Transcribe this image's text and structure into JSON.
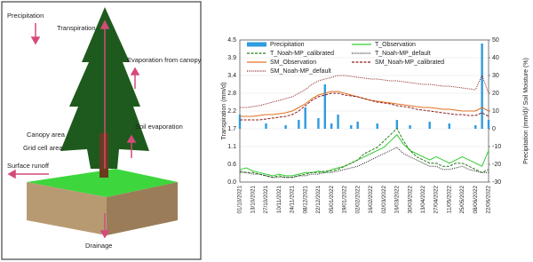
{
  "diagram": {
    "labels": {
      "precipitation": "Precipitation",
      "transpiration": "Transpiration",
      "evaporation_canopy": "Evaporation from canopy",
      "soil_evaporation": "Soil evaporation",
      "canopy_area": "Canopy area",
      "grid_cell_area": "Grid cell area",
      "surface_runoff": "Surface runoff",
      "drainage": "Drainage"
    }
  },
  "chart_data": {
    "type": "line",
    "y_label": "Transpiration (mm/d)",
    "y2_label": "Precipitation (mm/d)/ Soil Moisture (%)",
    "categories": [
      "01/10/2021",
      null,
      "13/10/2021",
      null,
      "27/10/2021",
      null,
      "10/11/2021",
      null,
      "24/11/2021",
      null,
      "08/12/2021",
      null,
      "22/12/2021",
      null,
      "05/01/2022",
      null,
      "19/01/2022",
      null,
      "02/02/2022",
      null,
      "16/02/2022",
      null,
      "02/03/2022",
      null,
      "16/03/2022",
      null,
      "30/03/2022",
      null,
      "13/04/2022",
      null,
      "27/04/2022",
      null,
      "11/05/2022",
      null,
      "25/05/2022",
      null,
      "08/06/2022",
      null,
      "22/06/2022"
    ],
    "ylim": [
      0,
      4.5
    ],
    "yticks": [
      {
        "value": 0,
        "label": "0.0"
      },
      {
        "value": 0.5625,
        "label": "0.6"
      },
      {
        "value": 1.125,
        "label": "1.1"
      },
      {
        "value": 1.6875,
        "label": "1.7"
      },
      {
        "value": 2.25,
        "label": "2.2"
      },
      {
        "value": 2.8125,
        "label": "2.8"
      },
      {
        "value": 3.375,
        "label": "3.4"
      },
      {
        "value": 3.9375,
        "label": "3.9"
      },
      4.5
    ],
    "y2lim": [
      -30,
      50
    ],
    "y2ticks": [
      -30,
      -20,
      -10,
      0,
      10,
      20,
      30,
      40,
      50
    ],
    "grid": true,
    "series": [
      {
        "name": "Precipitation",
        "type": "bar",
        "axis": "y2",
        "color": "#2e9be0",
        "values": [
          8,
          0,
          0,
          0,
          3,
          0,
          0,
          2,
          0,
          5,
          12,
          0,
          6,
          25,
          3,
          8,
          0,
          2,
          4,
          0,
          0,
          3,
          0,
          0,
          5,
          0,
          2,
          0,
          0,
          4,
          0,
          0,
          3,
          0,
          0,
          0,
          2,
          48,
          5
        ]
      },
      {
        "name": "T_Observation",
        "type": "line",
        "style": "solid",
        "color": "#33cc33",
        "values": [
          0.4,
          0.45,
          0.35,
          0.3,
          0.25,
          0.2,
          0.25,
          0.2,
          0.2,
          0.25,
          0.3,
          0.3,
          0.35,
          0.3,
          0.4,
          0.45,
          0.5,
          0.6,
          0.7,
          0.8,
          0.9,
          1.0,
          1.1,
          1.3,
          1.5,
          1.2,
          1.0,
          0.9,
          0.8,
          0.7,
          0.8,
          0.7,
          0.6,
          0.7,
          0.8,
          0.7,
          0.6,
          0.5,
          1.0
        ]
      },
      {
        "name": "T_Noah-MP_calibrated",
        "type": "line",
        "style": "dashed",
        "color": "#2a7a1a",
        "values": [
          0.35,
          0.3,
          0.3,
          0.25,
          0.2,
          0.15,
          0.2,
          0.15,
          0.15,
          0.2,
          0.25,
          0.3,
          0.3,
          0.35,
          0.35,
          0.4,
          0.5,
          0.6,
          0.7,
          0.9,
          1.0,
          1.1,
          1.3,
          1.5,
          1.7,
          1.3,
          1.0,
          0.8,
          0.7,
          0.6,
          0.6,
          0.5,
          0.5,
          0.6,
          0.6,
          0.5,
          0.4,
          0.3,
          0.4
        ]
      },
      {
        "name": "T_Noah-MP_default",
        "type": "line",
        "style": "dotted",
        "color": "#222222",
        "values": [
          0.3,
          0.3,
          0.25,
          0.25,
          0.2,
          0.15,
          0.15,
          0.15,
          0.15,
          0.2,
          0.2,
          0.25,
          0.25,
          0.3,
          0.3,
          0.35,
          0.4,
          0.45,
          0.5,
          0.6,
          0.7,
          0.8,
          0.9,
          1.0,
          1.1,
          0.9,
          0.8,
          0.7,
          0.6,
          0.5,
          0.5,
          0.4,
          0.4,
          0.45,
          0.5,
          0.4,
          0.35,
          0.3,
          0.3
        ]
      },
      {
        "name": "SM_Observation",
        "type": "line",
        "style": "solid",
        "axis": "y2",
        "color": "#e07020",
        "values": [
          7,
          7,
          7,
          7.5,
          8,
          8,
          8.5,
          9,
          10,
          12,
          14,
          17,
          19,
          20,
          21,
          21,
          20,
          19,
          18,
          17,
          16,
          15.5,
          15,
          14.5,
          14,
          13.5,
          13,
          12.5,
          12,
          12,
          11.5,
          11,
          11,
          10.5,
          10,
          10,
          10,
          12,
          10
        ]
      },
      {
        "name": "SM_Noah-MP_calibrated",
        "type": "line",
        "style": "dashed",
        "axis": "y2",
        "color": "#8b1a1a",
        "values": [
          5,
          5,
          5,
          5,
          5.5,
          6,
          6.5,
          7,
          8,
          10,
          13,
          16,
          18,
          19,
          20,
          20,
          19,
          18.5,
          18,
          17,
          16,
          15,
          14.5,
          14,
          13,
          12.5,
          12,
          11,
          10.5,
          10,
          9.5,
          9,
          8.5,
          8,
          8,
          7.5,
          7.5,
          9,
          7
        ]
      },
      {
        "name": "SM_Noah-MP_default",
        "type": "line",
        "style": "dotted",
        "axis": "y2",
        "color": "#8b1a1a",
        "values": [
          12,
          12,
          12.5,
          13,
          14,
          15,
          16,
          17,
          18,
          20,
          22,
          25,
          27,
          28,
          29,
          30,
          30,
          29.5,
          29,
          28.5,
          28,
          28,
          27.5,
          27,
          27,
          26.5,
          26,
          25.5,
          25,
          25,
          24.5,
          24,
          24,
          23.5,
          23,
          22.5,
          22,
          30,
          20
        ]
      }
    ]
  }
}
